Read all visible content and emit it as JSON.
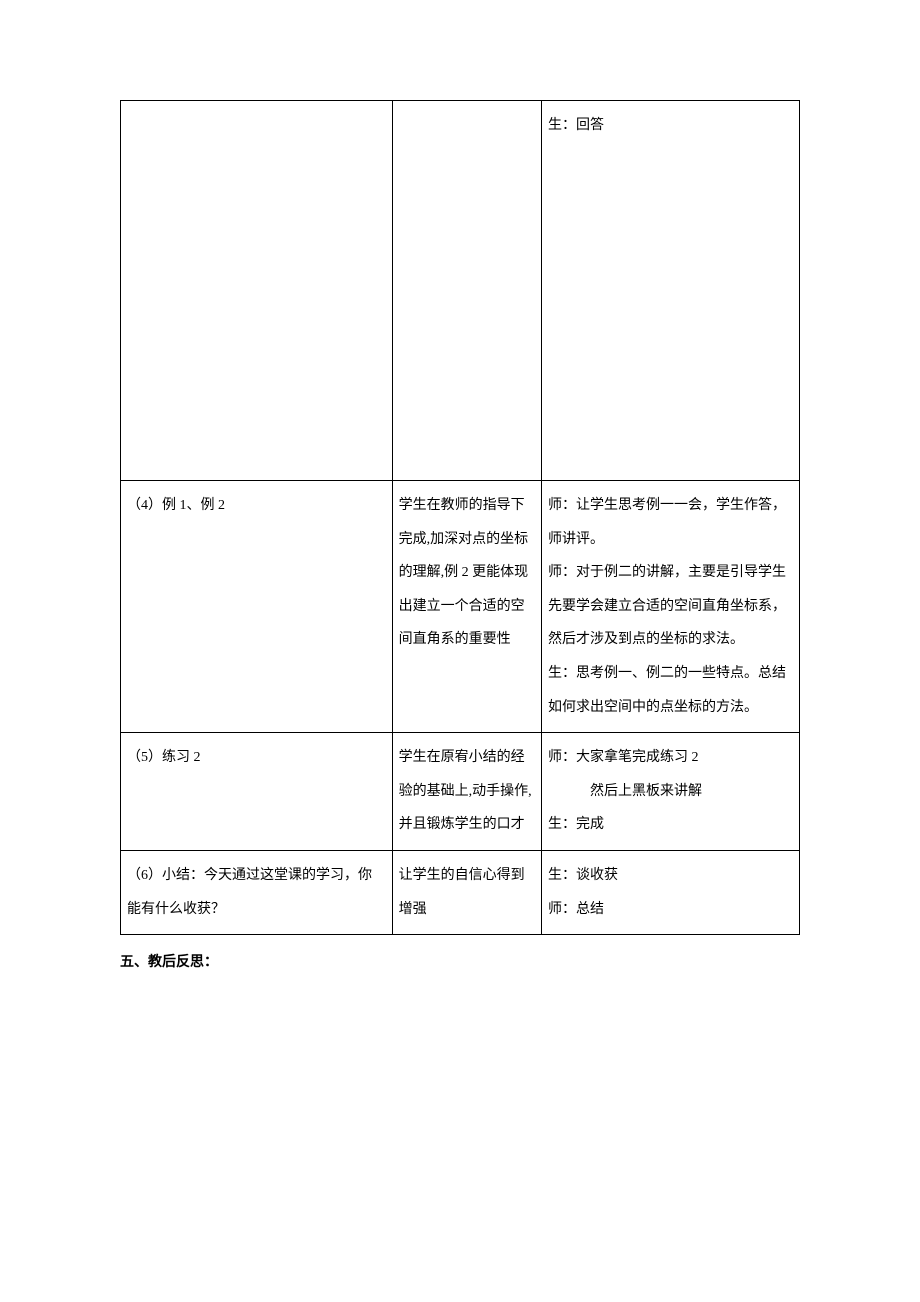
{
  "table": {
    "rows": [
      {
        "col1": "",
        "col2": "",
        "col3": "生：回答",
        "tall": true
      },
      {
        "col1": "（4）例 1、例 2",
        "col2": "学生在教师的指导下完成,加深对点的坐标的理解,例 2 更能体现出建立一个合适的空间直角系的重要性",
        "col3": "师：让学生思考例一一会，学生作答，师讲评。\n师：对于例二的讲解，主要是引导学生先要学会建立合适的空间直角坐标系，然后才涉及到点的坐标的求法。\n生：思考例一、例二的一些特点。总结如何求出空间中的点坐标的方法。"
      },
      {
        "col1": "（5）练习 2",
        "col2": "学生在原宥小结的经验的基础上,动手操作,并且锻炼学生的口才",
        "col3": "师：大家拿笔完成练习 2\n　　　然后上黑板来讲解\n生：完成"
      },
      {
        "col1": "（6）小结：今天通过这堂课的学习，你能有什么收获？",
        "col2": "让学生的自信心得到增强",
        "col3": "生：谈收获\n师：总结"
      }
    ]
  },
  "footer": "五、教后反思："
}
